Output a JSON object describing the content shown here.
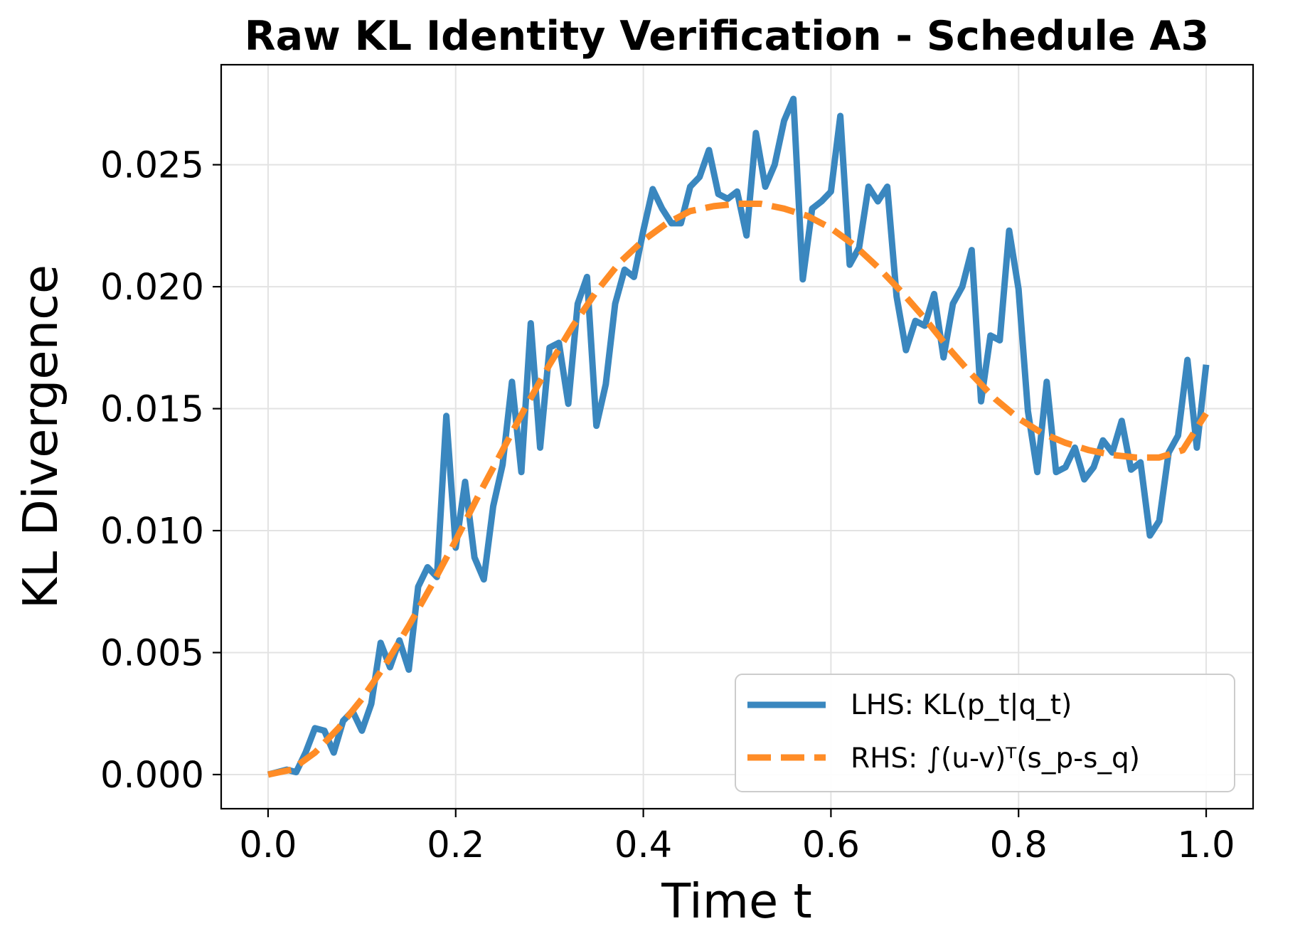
{
  "chart_data": {
    "type": "line",
    "title": "Raw KL Identity Verification - Schedule A3",
    "xlabel": "Time t",
    "ylabel": "KL Divergence",
    "xlim": [
      -0.05,
      1.05
    ],
    "ylim": [
      -0.0014,
      0.0291
    ],
    "xticks": [
      0.0,
      0.2,
      0.4,
      0.6,
      0.8,
      1.0
    ],
    "xtick_labels": [
      "0.0",
      "0.2",
      "0.4",
      "0.6",
      "0.8",
      "1.0"
    ],
    "yticks": [
      0.0,
      0.005,
      0.01,
      0.015,
      0.02,
      0.025
    ],
    "ytick_labels": [
      "0.000",
      "0.005",
      "0.010",
      "0.015",
      "0.020",
      "0.025"
    ],
    "grid": true,
    "legend_position": "lower-right",
    "series": [
      {
        "name": "LHS: KL(p_t|q_t)",
        "style": "solid",
        "color": "#3a87bf",
        "x": [
          0.0,
          0.01,
          0.02,
          0.03,
          0.04,
          0.05,
          0.06,
          0.07,
          0.08,
          0.09,
          0.1,
          0.11,
          0.12,
          0.13,
          0.14,
          0.15,
          0.16,
          0.17,
          0.18,
          0.19,
          0.2,
          0.21,
          0.22,
          0.23,
          0.24,
          0.25,
          0.26,
          0.27,
          0.28,
          0.29,
          0.3,
          0.31,
          0.32,
          0.33,
          0.34,
          0.35,
          0.36,
          0.37,
          0.38,
          0.39,
          0.4,
          0.41,
          0.42,
          0.43,
          0.44,
          0.45,
          0.46,
          0.47,
          0.48,
          0.49,
          0.5,
          0.51,
          0.52,
          0.53,
          0.54,
          0.55,
          0.56,
          0.57,
          0.58,
          0.59,
          0.6,
          0.61,
          0.62,
          0.63,
          0.64,
          0.65,
          0.66,
          0.67,
          0.68,
          0.69,
          0.7,
          0.71,
          0.72,
          0.73,
          0.74,
          0.75,
          0.76,
          0.77,
          0.78,
          0.79,
          0.8,
          0.81,
          0.82,
          0.83,
          0.84,
          0.85,
          0.86,
          0.87,
          0.88,
          0.89,
          0.9,
          0.91,
          0.92,
          0.93,
          0.94,
          0.95,
          0.96,
          0.97,
          0.98,
          0.99,
          1.0
        ],
        "values": [
          0.0,
          0.0001,
          0.0002,
          0.0001,
          0.0009,
          0.0019,
          0.0018,
          0.0009,
          0.0022,
          0.0026,
          0.0018,
          0.0029,
          0.0054,
          0.0044,
          0.0055,
          0.0043,
          0.0077,
          0.0085,
          0.0081,
          0.0147,
          0.0093,
          0.012,
          0.0089,
          0.008,
          0.011,
          0.0127,
          0.0161,
          0.0124,
          0.0185,
          0.0134,
          0.0175,
          0.0177,
          0.0152,
          0.0193,
          0.0204,
          0.0143,
          0.016,
          0.0193,
          0.0207,
          0.0204,
          0.0223,
          0.024,
          0.0232,
          0.0226,
          0.0226,
          0.0241,
          0.0245,
          0.0256,
          0.0238,
          0.0236,
          0.0239,
          0.0221,
          0.0263,
          0.0241,
          0.025,
          0.0268,
          0.0277,
          0.0203,
          0.0232,
          0.0235,
          0.0239,
          0.027,
          0.0209,
          0.0216,
          0.0241,
          0.0235,
          0.0241,
          0.0196,
          0.0174,
          0.0186,
          0.0184,
          0.0197,
          0.0171,
          0.0193,
          0.02,
          0.0215,
          0.0153,
          0.018,
          0.0178,
          0.0223,
          0.0199,
          0.0149,
          0.0124,
          0.0161,
          0.0124,
          0.0126,
          0.0134,
          0.0121,
          0.0126,
          0.0137,
          0.0132,
          0.0145,
          0.0125,
          0.0128,
          0.0098,
          0.0104,
          0.0132,
          0.0139,
          0.017,
          0.0134,
          0.0168
        ]
      },
      {
        "name": "RHS: ∫(u-v)ᵀ(s_p-s_q)",
        "style": "dashed",
        "color": "#ff8c26",
        "x": [
          0.0,
          0.025,
          0.05,
          0.075,
          0.1,
          0.125,
          0.15,
          0.175,
          0.2,
          0.225,
          0.25,
          0.275,
          0.3,
          0.325,
          0.35,
          0.375,
          0.4,
          0.425,
          0.45,
          0.475,
          0.5,
          0.525,
          0.55,
          0.575,
          0.6,
          0.625,
          0.65,
          0.675,
          0.7,
          0.725,
          0.75,
          0.775,
          0.8,
          0.825,
          0.85,
          0.875,
          0.9,
          0.925,
          0.95,
          0.975,
          1.0
        ],
        "values": [
          0.0,
          0.0002,
          0.0009,
          0.0019,
          0.0031,
          0.0045,
          0.0061,
          0.0078,
          0.0096,
          0.0115,
          0.0133,
          0.0151,
          0.0168,
          0.0184,
          0.0198,
          0.021,
          0.0219,
          0.0226,
          0.0231,
          0.0233,
          0.0234,
          0.0234,
          0.0232,
          0.0229,
          0.0224,
          0.0217,
          0.0208,
          0.0198,
          0.0187,
          0.0175,
          0.0164,
          0.0154,
          0.0146,
          0.014,
          0.0136,
          0.0133,
          0.0131,
          0.013,
          0.013,
          0.0133,
          0.0148
        ]
      }
    ]
  }
}
